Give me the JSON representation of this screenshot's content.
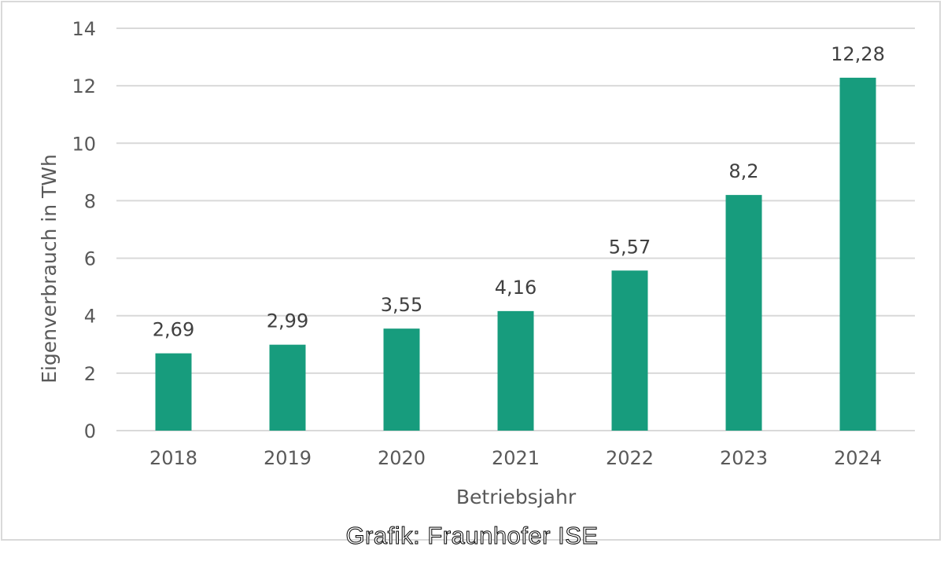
{
  "chart_data": {
    "type": "bar",
    "categories": [
      "2018",
      "2019",
      "2020",
      "2021",
      "2022",
      "2023",
      "2024"
    ],
    "values": [
      2.69,
      2.99,
      3.55,
      4.16,
      5.57,
      8.2,
      12.28
    ],
    "data_labels": [
      "2,69",
      "2,99",
      "3,55",
      "4,16",
      "5,57",
      "8,2",
      "12,28"
    ],
    "xlabel": "Betriebsjahr",
    "ylabel": "Eigenverbrauch in TWh",
    "ylim": [
      0,
      14
    ],
    "yticks": [
      0,
      2,
      4,
      6,
      8,
      10,
      12,
      14
    ],
    "grid": true,
    "bar_color": "#179c7d"
  },
  "credit": "Grafik: Fraunhofer ISE"
}
